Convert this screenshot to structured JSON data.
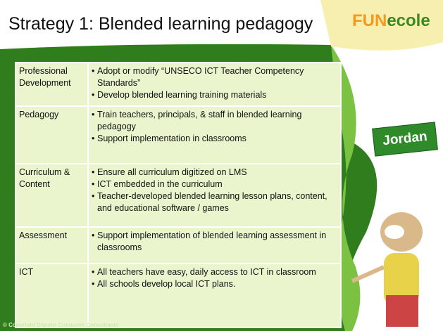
{
  "header": {
    "title": "Strategy 1: Blended learning pedagogy",
    "logo": {
      "fun": "FUN",
      "ecole": "ecole"
    }
  },
  "badge": "Jordan",
  "table": {
    "rows": [
      {
        "label": "Professional Development",
        "bullets": [
          "Adopt or modify “UNSECO ICT Teacher Competency Standards”",
          "Develop blended learning training materials"
        ]
      },
      {
        "label": "Pedagogy",
        "bullets": [
          "Train teachers, principals, & staff in blended learning pedagogy",
          "Support implementation in classrooms"
        ]
      },
      {
        "label": "Curriculum & Content",
        "bullets": [
          "Ensure all curriculum digitized on LMS",
          "ICT embedded in the curriculum",
          "Teacher-developed blended learning lesson plans, content, and educational software / games"
        ]
      },
      {
        "label": "Assessment",
        "bullets": [
          "Support implementation of blended learning assessment in classrooms"
        ]
      },
      {
        "label": "ICT",
        "bullets": [
          "All teachers have easy, daily access to ICT in classroom",
          "All schools develop local ICT plans."
        ]
      }
    ]
  },
  "footer": "© Copyright Digipro Computer Consultants"
}
